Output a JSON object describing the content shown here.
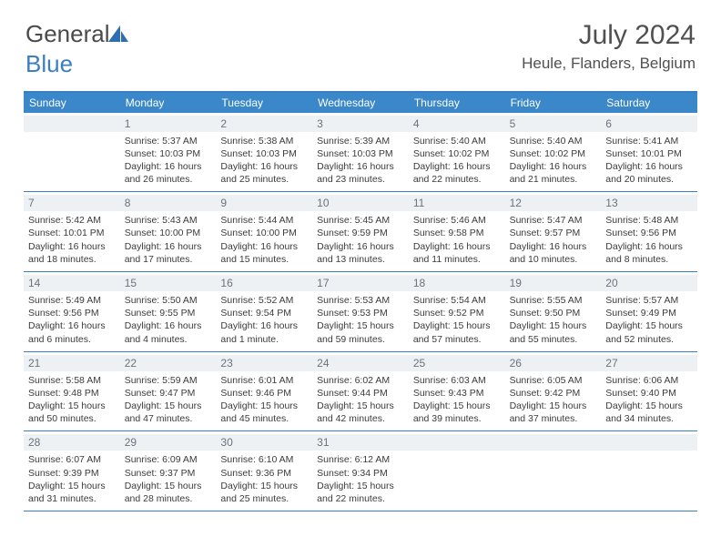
{
  "brand": {
    "part1": "General",
    "part2": "Blue"
  },
  "title": "July 2024",
  "location": "Heule, Flanders, Belgium",
  "header_bg": "#3a87c9",
  "border_color": "#3a7fc4",
  "daynum_bg": "#eef1f4",
  "days": [
    "Sunday",
    "Monday",
    "Tuesday",
    "Wednesday",
    "Thursday",
    "Friday",
    "Saturday"
  ],
  "weeks": [
    [
      {
        "n": "",
        "sr": "",
        "ss": "",
        "dl": ""
      },
      {
        "n": "1",
        "sr": "Sunrise: 5:37 AM",
        "ss": "Sunset: 10:03 PM",
        "dl": "Daylight: 16 hours and 26 minutes."
      },
      {
        "n": "2",
        "sr": "Sunrise: 5:38 AM",
        "ss": "Sunset: 10:03 PM",
        "dl": "Daylight: 16 hours and 25 minutes."
      },
      {
        "n": "3",
        "sr": "Sunrise: 5:39 AM",
        "ss": "Sunset: 10:03 PM",
        "dl": "Daylight: 16 hours and 23 minutes."
      },
      {
        "n": "4",
        "sr": "Sunrise: 5:40 AM",
        "ss": "Sunset: 10:02 PM",
        "dl": "Daylight: 16 hours and 22 minutes."
      },
      {
        "n": "5",
        "sr": "Sunrise: 5:40 AM",
        "ss": "Sunset: 10:02 PM",
        "dl": "Daylight: 16 hours and 21 minutes."
      },
      {
        "n": "6",
        "sr": "Sunrise: 5:41 AM",
        "ss": "Sunset: 10:01 PM",
        "dl": "Daylight: 16 hours and 20 minutes."
      }
    ],
    [
      {
        "n": "7",
        "sr": "Sunrise: 5:42 AM",
        "ss": "Sunset: 10:01 PM",
        "dl": "Daylight: 16 hours and 18 minutes."
      },
      {
        "n": "8",
        "sr": "Sunrise: 5:43 AM",
        "ss": "Sunset: 10:00 PM",
        "dl": "Daylight: 16 hours and 17 minutes."
      },
      {
        "n": "9",
        "sr": "Sunrise: 5:44 AM",
        "ss": "Sunset: 10:00 PM",
        "dl": "Daylight: 16 hours and 15 minutes."
      },
      {
        "n": "10",
        "sr": "Sunrise: 5:45 AM",
        "ss": "Sunset: 9:59 PM",
        "dl": "Daylight: 16 hours and 13 minutes."
      },
      {
        "n": "11",
        "sr": "Sunrise: 5:46 AM",
        "ss": "Sunset: 9:58 PM",
        "dl": "Daylight: 16 hours and 11 minutes."
      },
      {
        "n": "12",
        "sr": "Sunrise: 5:47 AM",
        "ss": "Sunset: 9:57 PM",
        "dl": "Daylight: 16 hours and 10 minutes."
      },
      {
        "n": "13",
        "sr": "Sunrise: 5:48 AM",
        "ss": "Sunset: 9:56 PM",
        "dl": "Daylight: 16 hours and 8 minutes."
      }
    ],
    [
      {
        "n": "14",
        "sr": "Sunrise: 5:49 AM",
        "ss": "Sunset: 9:56 PM",
        "dl": "Daylight: 16 hours and 6 minutes."
      },
      {
        "n": "15",
        "sr": "Sunrise: 5:50 AM",
        "ss": "Sunset: 9:55 PM",
        "dl": "Daylight: 16 hours and 4 minutes."
      },
      {
        "n": "16",
        "sr": "Sunrise: 5:52 AM",
        "ss": "Sunset: 9:54 PM",
        "dl": "Daylight: 16 hours and 1 minute."
      },
      {
        "n": "17",
        "sr": "Sunrise: 5:53 AM",
        "ss": "Sunset: 9:53 PM",
        "dl": "Daylight: 15 hours and 59 minutes."
      },
      {
        "n": "18",
        "sr": "Sunrise: 5:54 AM",
        "ss": "Sunset: 9:52 PM",
        "dl": "Daylight: 15 hours and 57 minutes."
      },
      {
        "n": "19",
        "sr": "Sunrise: 5:55 AM",
        "ss": "Sunset: 9:50 PM",
        "dl": "Daylight: 15 hours and 55 minutes."
      },
      {
        "n": "20",
        "sr": "Sunrise: 5:57 AM",
        "ss": "Sunset: 9:49 PM",
        "dl": "Daylight: 15 hours and 52 minutes."
      }
    ],
    [
      {
        "n": "21",
        "sr": "Sunrise: 5:58 AM",
        "ss": "Sunset: 9:48 PM",
        "dl": "Daylight: 15 hours and 50 minutes."
      },
      {
        "n": "22",
        "sr": "Sunrise: 5:59 AM",
        "ss": "Sunset: 9:47 PM",
        "dl": "Daylight: 15 hours and 47 minutes."
      },
      {
        "n": "23",
        "sr": "Sunrise: 6:01 AM",
        "ss": "Sunset: 9:46 PM",
        "dl": "Daylight: 15 hours and 45 minutes."
      },
      {
        "n": "24",
        "sr": "Sunrise: 6:02 AM",
        "ss": "Sunset: 9:44 PM",
        "dl": "Daylight: 15 hours and 42 minutes."
      },
      {
        "n": "25",
        "sr": "Sunrise: 6:03 AM",
        "ss": "Sunset: 9:43 PM",
        "dl": "Daylight: 15 hours and 39 minutes."
      },
      {
        "n": "26",
        "sr": "Sunrise: 6:05 AM",
        "ss": "Sunset: 9:42 PM",
        "dl": "Daylight: 15 hours and 37 minutes."
      },
      {
        "n": "27",
        "sr": "Sunrise: 6:06 AM",
        "ss": "Sunset: 9:40 PM",
        "dl": "Daylight: 15 hours and 34 minutes."
      }
    ],
    [
      {
        "n": "28",
        "sr": "Sunrise: 6:07 AM",
        "ss": "Sunset: 9:39 PM",
        "dl": "Daylight: 15 hours and 31 minutes."
      },
      {
        "n": "29",
        "sr": "Sunrise: 6:09 AM",
        "ss": "Sunset: 9:37 PM",
        "dl": "Daylight: 15 hours and 28 minutes."
      },
      {
        "n": "30",
        "sr": "Sunrise: 6:10 AM",
        "ss": "Sunset: 9:36 PM",
        "dl": "Daylight: 15 hours and 25 minutes."
      },
      {
        "n": "31",
        "sr": "Sunrise: 6:12 AM",
        "ss": "Sunset: 9:34 PM",
        "dl": "Daylight: 15 hours and 22 minutes."
      },
      {
        "n": "",
        "sr": "",
        "ss": "",
        "dl": ""
      },
      {
        "n": "",
        "sr": "",
        "ss": "",
        "dl": ""
      },
      {
        "n": "",
        "sr": "",
        "ss": "",
        "dl": ""
      }
    ]
  ]
}
